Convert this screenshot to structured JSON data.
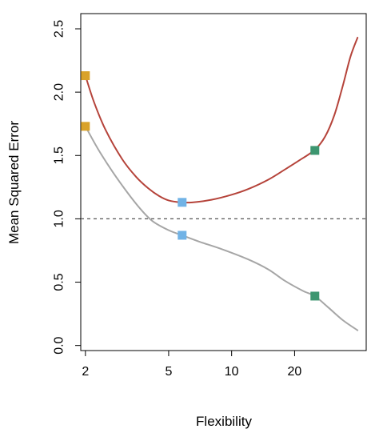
{
  "chart_data": {
    "type": "line",
    "xlabel": "Flexibility",
    "ylabel": "Mean Squared Error",
    "x_scale": "log",
    "xlim": [
      1.9,
      44
    ],
    "ylim": [
      -0.04,
      2.62
    ],
    "x_ticks": [
      {
        "value": 2,
        "label": "2"
      },
      {
        "value": 5,
        "label": "5"
      },
      {
        "value": 10,
        "label": "10"
      },
      {
        "value": 20,
        "label": "20"
      }
    ],
    "y_ticks": [
      {
        "value": 0.0,
        "label": "0.0"
      },
      {
        "value": 0.5,
        "label": "0.5"
      },
      {
        "value": 1.0,
        "label": "1.0"
      },
      {
        "value": 1.5,
        "label": "1.5"
      },
      {
        "value": 2.0,
        "label": "2.0"
      },
      {
        "value": 2.5,
        "label": "2.5"
      }
    ],
    "reference_line": {
      "y": 1.0,
      "style": "dashed",
      "color": "#555555"
    },
    "series": [
      {
        "color": "#b5433a",
        "points": [
          [
            2,
            2.13
          ],
          [
            2.2,
            1.92
          ],
          [
            2.5,
            1.7
          ],
          [
            3,
            1.47
          ],
          [
            3.5,
            1.33
          ],
          [
            4,
            1.24
          ],
          [
            4.5,
            1.18
          ],
          [
            5,
            1.145
          ],
          [
            5.7,
            1.13
          ],
          [
            6.5,
            1.13
          ],
          [
            8,
            1.15
          ],
          [
            10,
            1.19
          ],
          [
            12,
            1.235
          ],
          [
            15,
            1.31
          ],
          [
            18,
            1.39
          ],
          [
            21,
            1.46
          ],
          [
            25,
            1.545
          ],
          [
            28,
            1.65
          ],
          [
            31,
            1.82
          ],
          [
            34,
            2.05
          ],
          [
            37,
            2.28
          ],
          [
            40,
            2.43
          ]
        ]
      },
      {
        "color": "#a6a6a6",
        "points": [
          [
            2,
            1.73
          ],
          [
            2.3,
            1.55
          ],
          [
            2.7,
            1.37
          ],
          [
            3.2,
            1.2
          ],
          [
            3.7,
            1.07
          ],
          [
            4.2,
            0.98
          ],
          [
            5,
            0.91
          ],
          [
            5.8,
            0.87
          ],
          [
            7,
            0.82
          ],
          [
            9,
            0.76
          ],
          [
            12,
            0.68
          ],
          [
            15,
            0.6
          ],
          [
            18,
            0.51
          ],
          [
            22,
            0.43
          ],
          [
            25,
            0.39
          ],
          [
            29,
            0.3
          ],
          [
            34,
            0.2
          ],
          [
            40,
            0.12
          ]
        ]
      }
    ],
    "markers": [
      {
        "x": 2,
        "y": 2.13,
        "color": "#d9a22a"
      },
      {
        "x": 2,
        "y": 1.73,
        "color": "#d9a22a"
      },
      {
        "x": 5.8,
        "y": 1.13,
        "color": "#71b3e6"
      },
      {
        "x": 5.8,
        "y": 0.87,
        "color": "#71b3e6"
      },
      {
        "x": 25,
        "y": 1.54,
        "color": "#3d9670"
      },
      {
        "x": 25,
        "y": 0.39,
        "color": "#3d9670"
      }
    ]
  }
}
